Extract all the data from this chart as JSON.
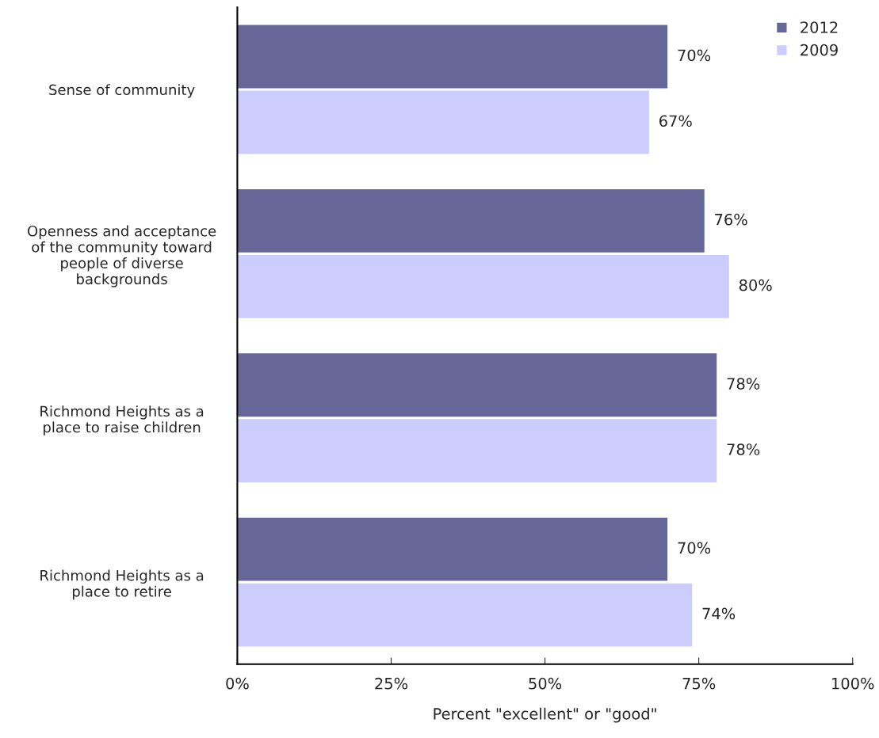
{
  "chart_data": {
    "type": "bar",
    "orientation": "horizontal",
    "xlabel": "Percent \"excellent\" or \"good\"",
    "categories": [
      "Sense of community",
      "Openness and acceptance of the community toward people of diverse backgrounds",
      "Richmond Heights as a place to raise children",
      "Richmond Heights as a place to retire"
    ],
    "series": [
      {
        "name": "2012",
        "color": "#666699",
        "values": [
          70,
          76,
          78,
          70
        ],
        "value_labels": [
          "70%",
          "76%",
          "78%",
          "70%"
        ]
      },
      {
        "name": "2009",
        "color": "#ccccff",
        "values": [
          67,
          80,
          78,
          74
        ],
        "value_labels": [
          "67%",
          "80%",
          "78%",
          "74%"
        ]
      }
    ],
    "xlim": [
      0,
      100
    ],
    "xticks": [
      {
        "value": 0,
        "label": "0%"
      },
      {
        "value": 25,
        "label": "25%"
      },
      {
        "value": 50,
        "label": "50%"
      },
      {
        "value": 75,
        "label": "75%"
      },
      {
        "value": 100,
        "label": "100%"
      }
    ],
    "grid": false,
    "legend": "top right"
  }
}
